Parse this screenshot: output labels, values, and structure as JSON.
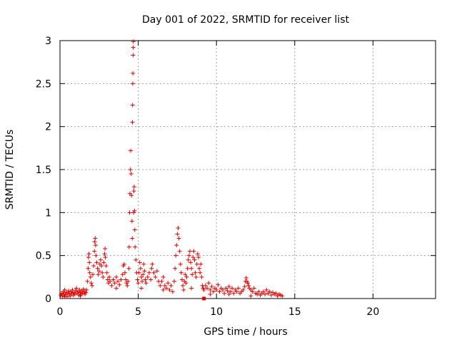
{
  "chart_data": {
    "type": "scatter",
    "title": "Day 001 of 2022, SRMTID for receiver list",
    "xlabel": "GPS time / hours",
    "ylabel": "SRMTID / TECUs",
    "xlim": [
      0,
      24
    ],
    "ylim": [
      0,
      3
    ],
    "xticks": [
      0,
      5,
      10,
      15,
      20
    ],
    "yticks": [
      0,
      0.5,
      1,
      1.5,
      2,
      2.5,
      3
    ],
    "xtick_labels": [
      "0",
      "5",
      "10",
      "15",
      "20"
    ],
    "ytick_labels": [
      "0",
      "0.5",
      "1",
      "1.5",
      "2",
      "2.5",
      "3"
    ],
    "grid": true,
    "marker": "plus",
    "color": "#e00000",
    "series": [
      {
        "name": "SRMTID",
        "points": [
          [
            0.05,
            0.04
          ],
          [
            0.1,
            0.06
          ],
          [
            0.15,
            0.03
          ],
          [
            0.2,
            0.08
          ],
          [
            0.25,
            0.05
          ],
          [
            0.3,
            0.1
          ],
          [
            0.35,
            0.04
          ],
          [
            0.4,
            0.07
          ],
          [
            0.45,
            0.02
          ],
          [
            0.5,
            0.06
          ],
          [
            0.55,
            0.09
          ],
          [
            0.6,
            0.05
          ],
          [
            0.65,
            0.03
          ],
          [
            0.7,
            0.08
          ],
          [
            0.75,
            0.06
          ],
          [
            0.8,
            0.1
          ],
          [
            0.85,
            0.04
          ],
          [
            0.9,
            0.07
          ],
          [
            0.95,
            0.05
          ],
          [
            1.0,
            0.09
          ],
          [
            1.05,
            0.12
          ],
          [
            1.1,
            0.06
          ],
          [
            1.15,
            0.08
          ],
          [
            1.2,
            0.04
          ],
          [
            1.25,
            0.1
          ],
          [
            1.3,
            0.07
          ],
          [
            1.35,
            0.05
          ],
          [
            1.4,
            0.09
          ],
          [
            1.45,
            0.06
          ],
          [
            1.5,
            0.11
          ],
          [
            1.55,
            0.08
          ],
          [
            1.6,
            0.05
          ],
          [
            1.65,
            0.07
          ],
          [
            1.7,
            0.1
          ],
          [
            1.75,
            0.2
          ],
          [
            1.8,
            0.35
          ],
          [
            1.82,
            0.48
          ],
          [
            1.85,
            0.52
          ],
          [
            1.88,
            0.42
          ],
          [
            1.9,
            0.3
          ],
          [
            1.95,
            0.25
          ],
          [
            2.0,
            0.18
          ],
          [
            2.05,
            0.15
          ],
          [
            2.1,
            0.28
          ],
          [
            2.15,
            0.38
          ],
          [
            2.2,
            0.55
          ],
          [
            2.22,
            0.66
          ],
          [
            2.25,
            0.7
          ],
          [
            2.28,
            0.62
          ],
          [
            2.3,
            0.5
          ],
          [
            2.35,
            0.42
          ],
          [
            2.4,
            0.35
          ],
          [
            2.45,
            0.28
          ],
          [
            2.5,
            0.32
          ],
          [
            2.55,
            0.4
          ],
          [
            2.6,
            0.45
          ],
          [
            2.65,
            0.38
          ],
          [
            2.7,
            0.3
          ],
          [
            2.75,
            0.25
          ],
          [
            2.8,
            0.42
          ],
          [
            2.85,
            0.52
          ],
          [
            2.88,
            0.58
          ],
          [
            2.9,
            0.48
          ],
          [
            2.95,
            0.38
          ],
          [
            3.0,
            0.3
          ],
          [
            3.05,
            0.22
          ],
          [
            3.1,
            0.18
          ],
          [
            3.15,
            0.25
          ],
          [
            3.2,
            0.2
          ],
          [
            3.3,
            0.15
          ],
          [
            3.4,
            0.22
          ],
          [
            3.5,
            0.18
          ],
          [
            3.6,
            0.25
          ],
          [
            3.7,
            0.2
          ],
          [
            3.8,
            0.16
          ],
          [
            3.9,
            0.22
          ],
          [
            4.0,
            0.28
          ],
          [
            4.05,
            0.38
          ],
          [
            4.1,
            0.4
          ],
          [
            4.15,
            0.3
          ],
          [
            4.2,
            0.22
          ],
          [
            4.25,
            0.18
          ],
          [
            4.3,
            0.15
          ],
          [
            4.35,
            0.2
          ],
          [
            4.4,
            0.35
          ],
          [
            4.42,
            0.6
          ],
          [
            4.45,
            1.0
          ],
          [
            4.47,
            1.22
          ],
          [
            4.5,
            1.5
          ],
          [
            4.52,
            1.72
          ],
          [
            4.55,
            1.45
          ],
          [
            4.57,
            1.2
          ],
          [
            4.6,
            0.9
          ],
          [
            4.62,
            0.7
          ],
          [
            4.63,
            2.05
          ],
          [
            4.64,
            2.25
          ],
          [
            4.65,
            2.5
          ],
          [
            4.66,
            2.62
          ],
          [
            4.67,
            2.83
          ],
          [
            4.68,
            2.92
          ],
          [
            4.69,
            2.99
          ],
          [
            4.7,
            1.0
          ],
          [
            4.72,
            1.25
          ],
          [
            4.74,
            1.3
          ],
          [
            4.76,
            1.02
          ],
          [
            4.78,
            0.8
          ],
          [
            4.8,
            0.6
          ],
          [
            4.85,
            0.45
          ],
          [
            4.9,
            0.3
          ],
          [
            4.95,
            0.22
          ],
          [
            5.0,
            0.18
          ],
          [
            5.05,
            0.3
          ],
          [
            5.1,
            0.42
          ],
          [
            5.15,
            0.35
          ],
          [
            5.2,
            0.25
          ],
          [
            5.25,
            0.2
          ],
          [
            5.3,
            0.28
          ],
          [
            5.35,
            0.4
          ],
          [
            5.4,
            0.32
          ],
          [
            5.45,
            0.22
          ],
          [
            5.5,
            0.18
          ],
          [
            5.6,
            0.25
          ],
          [
            5.7,
            0.3
          ],
          [
            5.8,
            0.22
          ],
          [
            5.85,
            0.35
          ],
          [
            5.9,
            0.4
          ],
          [
            6.0,
            0.3
          ],
          [
            6.1,
            0.25
          ],
          [
            6.2,
            0.32
          ],
          [
            6.3,
            0.2
          ],
          [
            6.4,
            0.15
          ],
          [
            6.5,
            0.2
          ],
          [
            6.6,
            0.25
          ],
          [
            6.7,
            0.15
          ],
          [
            6.8,
            0.12
          ],
          [
            6.9,
            0.18
          ],
          [
            7.0,
            0.1
          ],
          [
            7.1,
            0.15
          ],
          [
            7.2,
            0.08
          ],
          [
            7.3,
            0.2
          ],
          [
            7.35,
            0.35
          ],
          [
            7.4,
            0.5
          ],
          [
            7.45,
            0.62
          ],
          [
            7.5,
            0.75
          ],
          [
            7.55,
            0.82
          ],
          [
            7.6,
            0.7
          ],
          [
            7.65,
            0.55
          ],
          [
            7.7,
            0.4
          ],
          [
            7.75,
            0.3
          ],
          [
            7.8,
            0.22
          ],
          [
            7.85,
            0.15
          ],
          [
            7.9,
            0.1
          ],
          [
            7.95,
            0.2
          ],
          [
            8.0,
            0.28
          ],
          [
            8.05,
            0.18
          ],
          [
            8.1,
            0.25
          ],
          [
            8.15,
            0.35
          ],
          [
            8.2,
            0.45
          ],
          [
            8.25,
            0.5
          ],
          [
            8.3,
            0.55
          ],
          [
            8.35,
            0.42
          ],
          [
            8.4,
            0.35
          ],
          [
            8.45,
            0.28
          ],
          [
            8.5,
            0.48
          ],
          [
            8.55,
            0.55
          ],
          [
            8.6,
            0.45
          ],
          [
            8.65,
            0.3
          ],
          [
            8.7,
            0.25
          ],
          [
            8.75,
            0.4
          ],
          [
            8.8,
            0.52
          ],
          [
            8.85,
            0.48
          ],
          [
            8.9,
            0.35
          ],
          [
            8.95,
            0.3
          ],
          [
            9.0,
            0.4
          ],
          [
            9.05,
            0.25
          ],
          [
            9.1,
            0.15
          ],
          [
            9.15,
            0.12
          ],
          [
            9.2,
            0.1
          ],
          [
            9.3,
            0.15
          ],
          [
            9.4,
            0.12
          ],
          [
            9.5,
            0.18
          ],
          [
            9.6,
            0.1
          ],
          [
            9.7,
            0.14
          ],
          [
            9.8,
            0.08
          ],
          [
            9.9,
            0.12
          ],
          [
            10.0,
            0.1
          ],
          [
            10.1,
            0.16
          ],
          [
            10.2,
            0.08
          ],
          [
            10.3,
            0.12
          ],
          [
            10.4,
            0.1
          ],
          [
            10.5,
            0.06
          ],
          [
            10.6,
            0.12
          ],
          [
            10.7,
            0.09
          ],
          [
            10.8,
            0.14
          ],
          [
            10.9,
            0.08
          ],
          [
            11.0,
            0.12
          ],
          [
            11.1,
            0.06
          ],
          [
            11.2,
            0.1
          ],
          [
            11.3,
            0.08
          ],
          [
            11.4,
            0.12
          ],
          [
            11.5,
            0.06
          ],
          [
            11.6,
            0.08
          ],
          [
            11.7,
            0.1
          ],
          [
            11.8,
            0.14
          ],
          [
            11.85,
            0.2
          ],
          [
            11.9,
            0.24
          ],
          [
            11.95,
            0.2
          ],
          [
            12.0,
            0.18
          ],
          [
            12.05,
            0.15
          ],
          [
            12.1,
            0.12
          ],
          [
            12.2,
            0.1
          ],
          [
            12.3,
            0.08
          ],
          [
            12.4,
            0.12
          ],
          [
            12.5,
            0.06
          ],
          [
            12.6,
            0.05
          ],
          [
            12.7,
            0.08
          ],
          [
            12.8,
            0.04
          ],
          [
            12.9,
            0.06
          ],
          [
            13.0,
            0.08
          ],
          [
            13.1,
            0.05
          ],
          [
            13.2,
            0.1
          ],
          [
            13.3,
            0.06
          ],
          [
            13.4,
            0.08
          ],
          [
            13.5,
            0.04
          ],
          [
            13.6,
            0.07
          ],
          [
            13.7,
            0.05
          ],
          [
            13.8,
            0.06
          ],
          [
            13.9,
            0.03
          ],
          [
            14.0,
            0.05
          ],
          [
            14.1,
            0.04
          ],
          [
            14.2,
            0.03
          ],
          [
            0.3,
            0.02
          ],
          [
            1.3,
            0.03
          ],
          [
            3.6,
            0.12
          ],
          [
            5.2,
            0.12
          ],
          [
            6.6,
            0.1
          ],
          [
            8.4,
            0.12
          ],
          [
            9.6,
            0.05
          ],
          [
            10.8,
            0.05
          ],
          [
            12.2,
            0.03
          ]
        ],
        "squares": [
          [
            9.2,
            0.0
          ]
        ]
      }
    ]
  }
}
